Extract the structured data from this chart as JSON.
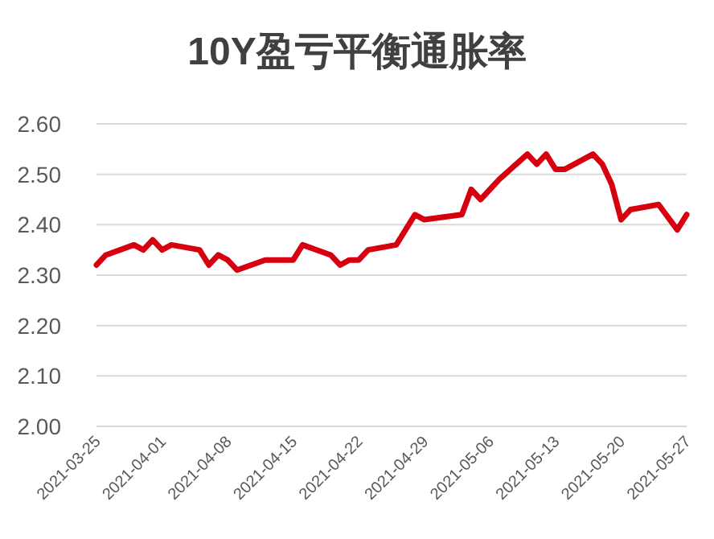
{
  "chart_data": {
    "type": "line",
    "title": "10Y盈亏平衡通胀率",
    "x": [
      "2021-03-25",
      "2021-03-26",
      "2021-03-29",
      "2021-03-30",
      "2021-03-31",
      "2021-04-01",
      "2021-04-02",
      "2021-04-05",
      "2021-04-06",
      "2021-04-07",
      "2021-04-08",
      "2021-04-09",
      "2021-04-12",
      "2021-04-15",
      "2021-04-16",
      "2021-04-19",
      "2021-04-20",
      "2021-04-21",
      "2021-04-22",
      "2021-04-23",
      "2021-04-26",
      "2021-04-28",
      "2021-04-29",
      "2021-05-03",
      "2021-05-04",
      "2021-05-05",
      "2021-05-07",
      "2021-05-10",
      "2021-05-11",
      "2021-05-12",
      "2021-05-13",
      "2021-05-14",
      "2021-05-17",
      "2021-05-18",
      "2021-05-19",
      "2021-05-20",
      "2021-05-21",
      "2021-05-24",
      "2021-05-26",
      "2021-05-27"
    ],
    "series": [
      {
        "color": "#d7000f",
        "values": [
          2.32,
          2.34,
          2.36,
          2.35,
          2.37,
          2.35,
          2.36,
          2.35,
          2.32,
          2.34,
          2.33,
          2.31,
          2.33,
          2.33,
          2.36,
          2.34,
          2.32,
          2.33,
          2.33,
          2.35,
          2.36,
          2.42,
          2.41,
          2.42,
          2.47,
          2.45,
          2.49,
          2.54,
          2.52,
          2.54,
          2.51,
          2.51,
          2.54,
          2.52,
          2.48,
          2.41,
          2.43,
          2.44,
          2.39,
          2.42
        ]
      }
    ],
    "xlim": [
      "2021-03-25",
      "2021-05-27"
    ],
    "xticks": [
      "2021-03-25",
      "2021-04-01",
      "2021-04-08",
      "2021-04-15",
      "2021-04-22",
      "2021-04-29",
      "2021-05-06",
      "2021-05-13",
      "2021-05-20",
      "2021-05-27"
    ],
    "ylim": [
      2.0,
      2.6
    ],
    "yticks": [
      {
        "value": 2.0,
        "label": "2.00"
      },
      {
        "value": 2.1,
        "label": "2.10"
      },
      {
        "value": 2.2,
        "label": "2.20"
      },
      {
        "value": 2.3,
        "label": "2.30"
      },
      {
        "value": 2.4,
        "label": "2.40"
      },
      {
        "value": 2.5,
        "label": "2.50"
      },
      {
        "value": 2.6,
        "label": "2.60"
      }
    ],
    "grid": "y",
    "marker": "none",
    "line_style": "solid"
  }
}
